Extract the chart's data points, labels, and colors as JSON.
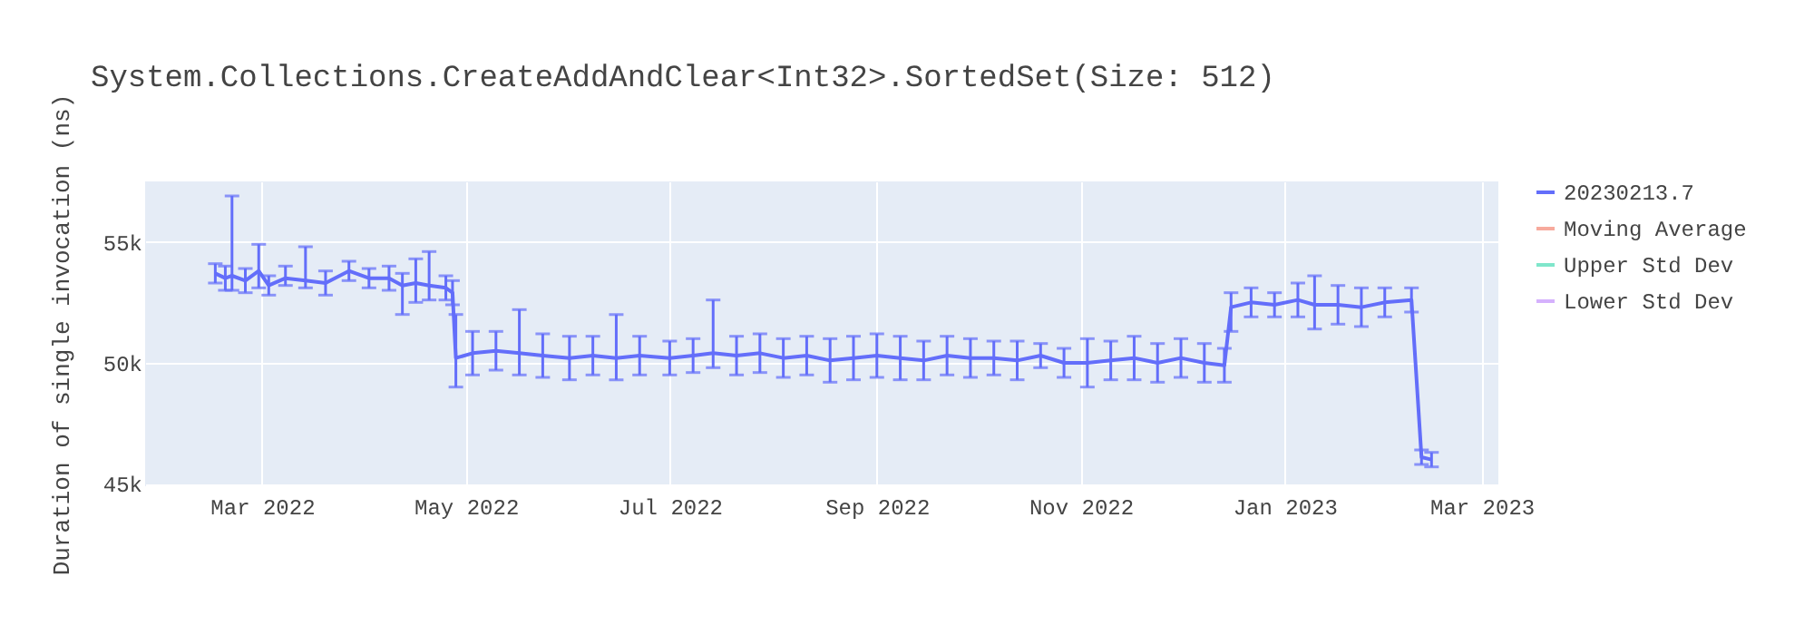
{
  "chart_data": {
    "type": "line",
    "title": "System.Collections.CreateAddAndClear<Int32>.SortedSet(Size: 512)",
    "ylabel": "Duration of single invocation (ns)",
    "xlim": [
      "2022-01-25",
      "2023-03-06"
    ],
    "ylim": [
      44900,
      57500
    ],
    "xticks": [
      {
        "value": "2022-03-01",
        "label": "Mar 2022"
      },
      {
        "value": "2022-05-01",
        "label": "May 2022"
      },
      {
        "value": "2022-07-01",
        "label": "Jul 2022"
      },
      {
        "value": "2022-09-01",
        "label": "Sep 2022"
      },
      {
        "value": "2022-11-01",
        "label": "Nov 2022"
      },
      {
        "value": "2023-01-01",
        "label": "Jan 2023"
      },
      {
        "value": "2023-03-01",
        "label": "Mar 2023"
      }
    ],
    "yticks": [
      {
        "value": 45000,
        "label": "45k"
      },
      {
        "value": 50000,
        "label": "50k"
      },
      {
        "value": 55000,
        "label": "55k"
      }
    ],
    "grid": true,
    "legend": "top right",
    "marker": "none",
    "line_style": "solid",
    "x": [
      "2022-02-15",
      "2022-02-18",
      "2022-02-20",
      "2022-02-24",
      "2022-02-28",
      "2022-03-03",
      "2022-03-08",
      "2022-03-14",
      "2022-03-20",
      "2022-03-27",
      "2022-04-02",
      "2022-04-08",
      "2022-04-12",
      "2022-04-16",
      "2022-04-20",
      "2022-04-25",
      "2022-04-27",
      "2022-04-28",
      "2022-05-03",
      "2022-05-10",
      "2022-05-17",
      "2022-05-24",
      "2022-06-01",
      "2022-06-08",
      "2022-06-15",
      "2022-06-22",
      "2022-07-01",
      "2022-07-08",
      "2022-07-14",
      "2022-07-21",
      "2022-07-28",
      "2022-08-04",
      "2022-08-11",
      "2022-08-18",
      "2022-08-25",
      "2022-09-01",
      "2022-09-08",
      "2022-09-15",
      "2022-09-22",
      "2022-09-29",
      "2022-10-06",
      "2022-10-13",
      "2022-10-20",
      "2022-10-27",
      "2022-11-03",
      "2022-11-10",
      "2022-11-17",
      "2022-11-24",
      "2022-12-01",
      "2022-12-08",
      "2022-12-14",
      "2022-12-16",
      "2022-12-22",
      "2022-12-29",
      "2023-01-05",
      "2023-01-10",
      "2023-01-17",
      "2023-01-24",
      "2023-01-31",
      "2023-02-08",
      "2023-02-11",
      "2023-02-14"
    ],
    "series": [
      {
        "name": "20230213.7",
        "color": "#636efa",
        "values": [
          53700,
          53500,
          53600,
          53400,
          53800,
          53200,
          53500,
          53400,
          53300,
          53800,
          53500,
          53500,
          53200,
          53300,
          53200,
          53100,
          52900,
          50200,
          50400,
          50500,
          50400,
          50300,
          50200,
          50300,
          50200,
          50300,
          50200,
          50300,
          50400,
          50300,
          50400,
          50200,
          50300,
          50100,
          50200,
          50300,
          50200,
          50100,
          50300,
          50200,
          50200,
          50100,
          50300,
          50000,
          50000,
          50100,
          50200,
          50000,
          50200,
          50000,
          49900,
          52300,
          52500,
          52400,
          52600,
          52400,
          52400,
          52300,
          52500,
          52600,
          46100,
          46000
        ],
        "errors": [
          400,
          500,
          [
            53000,
            56900
          ],
          500,
          [
            53100,
            54900
          ],
          400,
          [
            53200,
            54000
          ],
          [
            53100,
            54800
          ],
          500,
          400,
          400,
          500,
          [
            52000,
            53700
          ],
          [
            52500,
            54300
          ],
          [
            52600,
            54600
          ],
          500,
          500,
          [
            49000,
            52000
          ],
          900,
          800,
          [
            49500,
            52200
          ],
          900,
          900,
          800,
          [
            49300,
            52000
          ],
          800,
          700,
          700,
          [
            49800,
            52600
          ],
          800,
          800,
          800,
          800,
          900,
          900,
          900,
          900,
          800,
          800,
          800,
          700,
          800,
          500,
          600,
          [
            49000,
            51000
          ],
          800,
          900,
          800,
          800,
          800,
          700,
          [
            51300,
            52900
          ],
          600,
          500,
          700,
          [
            51400,
            53600
          ],
          800,
          800,
          600,
          500,
          300,
          300
        ]
      },
      {
        "name": "Moving Average",
        "color": "#f7aa9d",
        "values": [
          null,
          null,
          null,
          null,
          null,
          null,
          null,
          null,
          null,
          null,
          null,
          null,
          null,
          null,
          null,
          null,
          null,
          null,
          null,
          null,
          null,
          null,
          null,
          null,
          null,
          null,
          null,
          null,
          null,
          null,
          null,
          null,
          null,
          null,
          null,
          null,
          null,
          null,
          null,
          null,
          null,
          null,
          null,
          null,
          null,
          null,
          null,
          null,
          null,
          null,
          null,
          null,
          null,
          null,
          null,
          null,
          null,
          null,
          null,
          null,
          null,
          null
        ]
      },
      {
        "name": "Upper Std Dev",
        "color": "#80e6cb",
        "values": [
          null,
          null,
          null,
          null,
          null,
          null,
          null,
          null,
          null,
          null,
          null,
          null,
          null,
          null,
          null,
          null,
          null,
          null,
          null,
          null,
          null,
          null,
          null,
          null,
          null,
          null,
          null,
          null,
          null,
          null,
          null,
          null,
          null,
          null,
          null,
          null,
          null,
          null,
          null,
          null,
          null,
          null,
          null,
          null,
          null,
          null,
          null,
          null,
          null,
          null,
          null,
          null,
          null,
          null,
          null,
          null,
          null,
          null,
          null,
          null,
          null,
          null
        ]
      },
      {
        "name": "Lower Std Dev",
        "color": "#d5b1fd",
        "values": [
          null,
          null,
          null,
          null,
          null,
          null,
          null,
          null,
          null,
          null,
          null,
          null,
          null,
          null,
          null,
          null,
          null,
          null,
          null,
          null,
          null,
          null,
          null,
          null,
          null,
          null,
          null,
          null,
          null,
          null,
          null,
          null,
          null,
          null,
          null,
          null,
          null,
          null,
          null,
          null,
          null,
          null,
          null,
          null,
          null,
          null,
          null,
          null,
          null,
          null,
          null,
          null,
          null,
          null,
          null,
          null,
          null,
          null,
          null,
          null,
          null,
          null
        ]
      }
    ]
  }
}
